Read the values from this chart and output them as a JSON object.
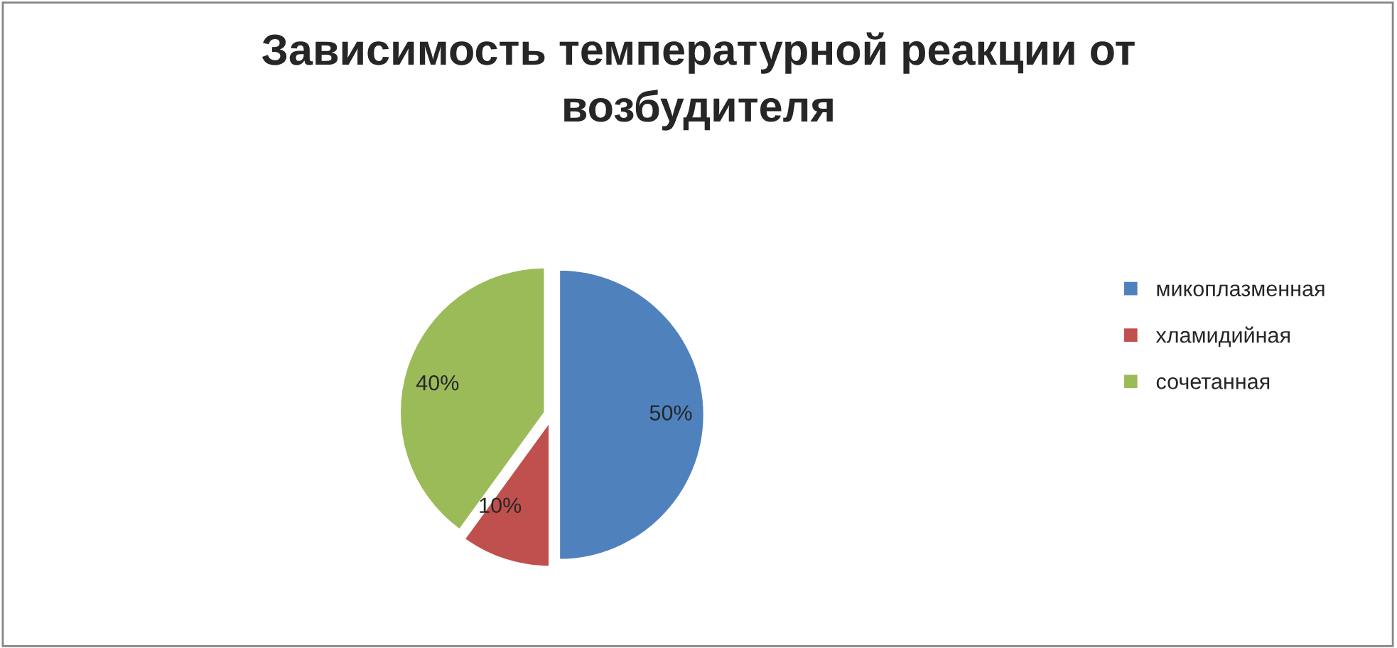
{
  "chart_data": {
    "type": "pie",
    "title": "Зависимость температурной реакции от возбудителя",
    "categories": [
      "микоплазменная",
      "хламидийная",
      "сочетанная"
    ],
    "values": [
      50,
      10,
      40
    ],
    "value_labels": [
      "50%",
      "10%",
      "40%"
    ],
    "colors": [
      "#4f81bd",
      "#c0504d",
      "#9bbb59"
    ],
    "legend": "right"
  }
}
